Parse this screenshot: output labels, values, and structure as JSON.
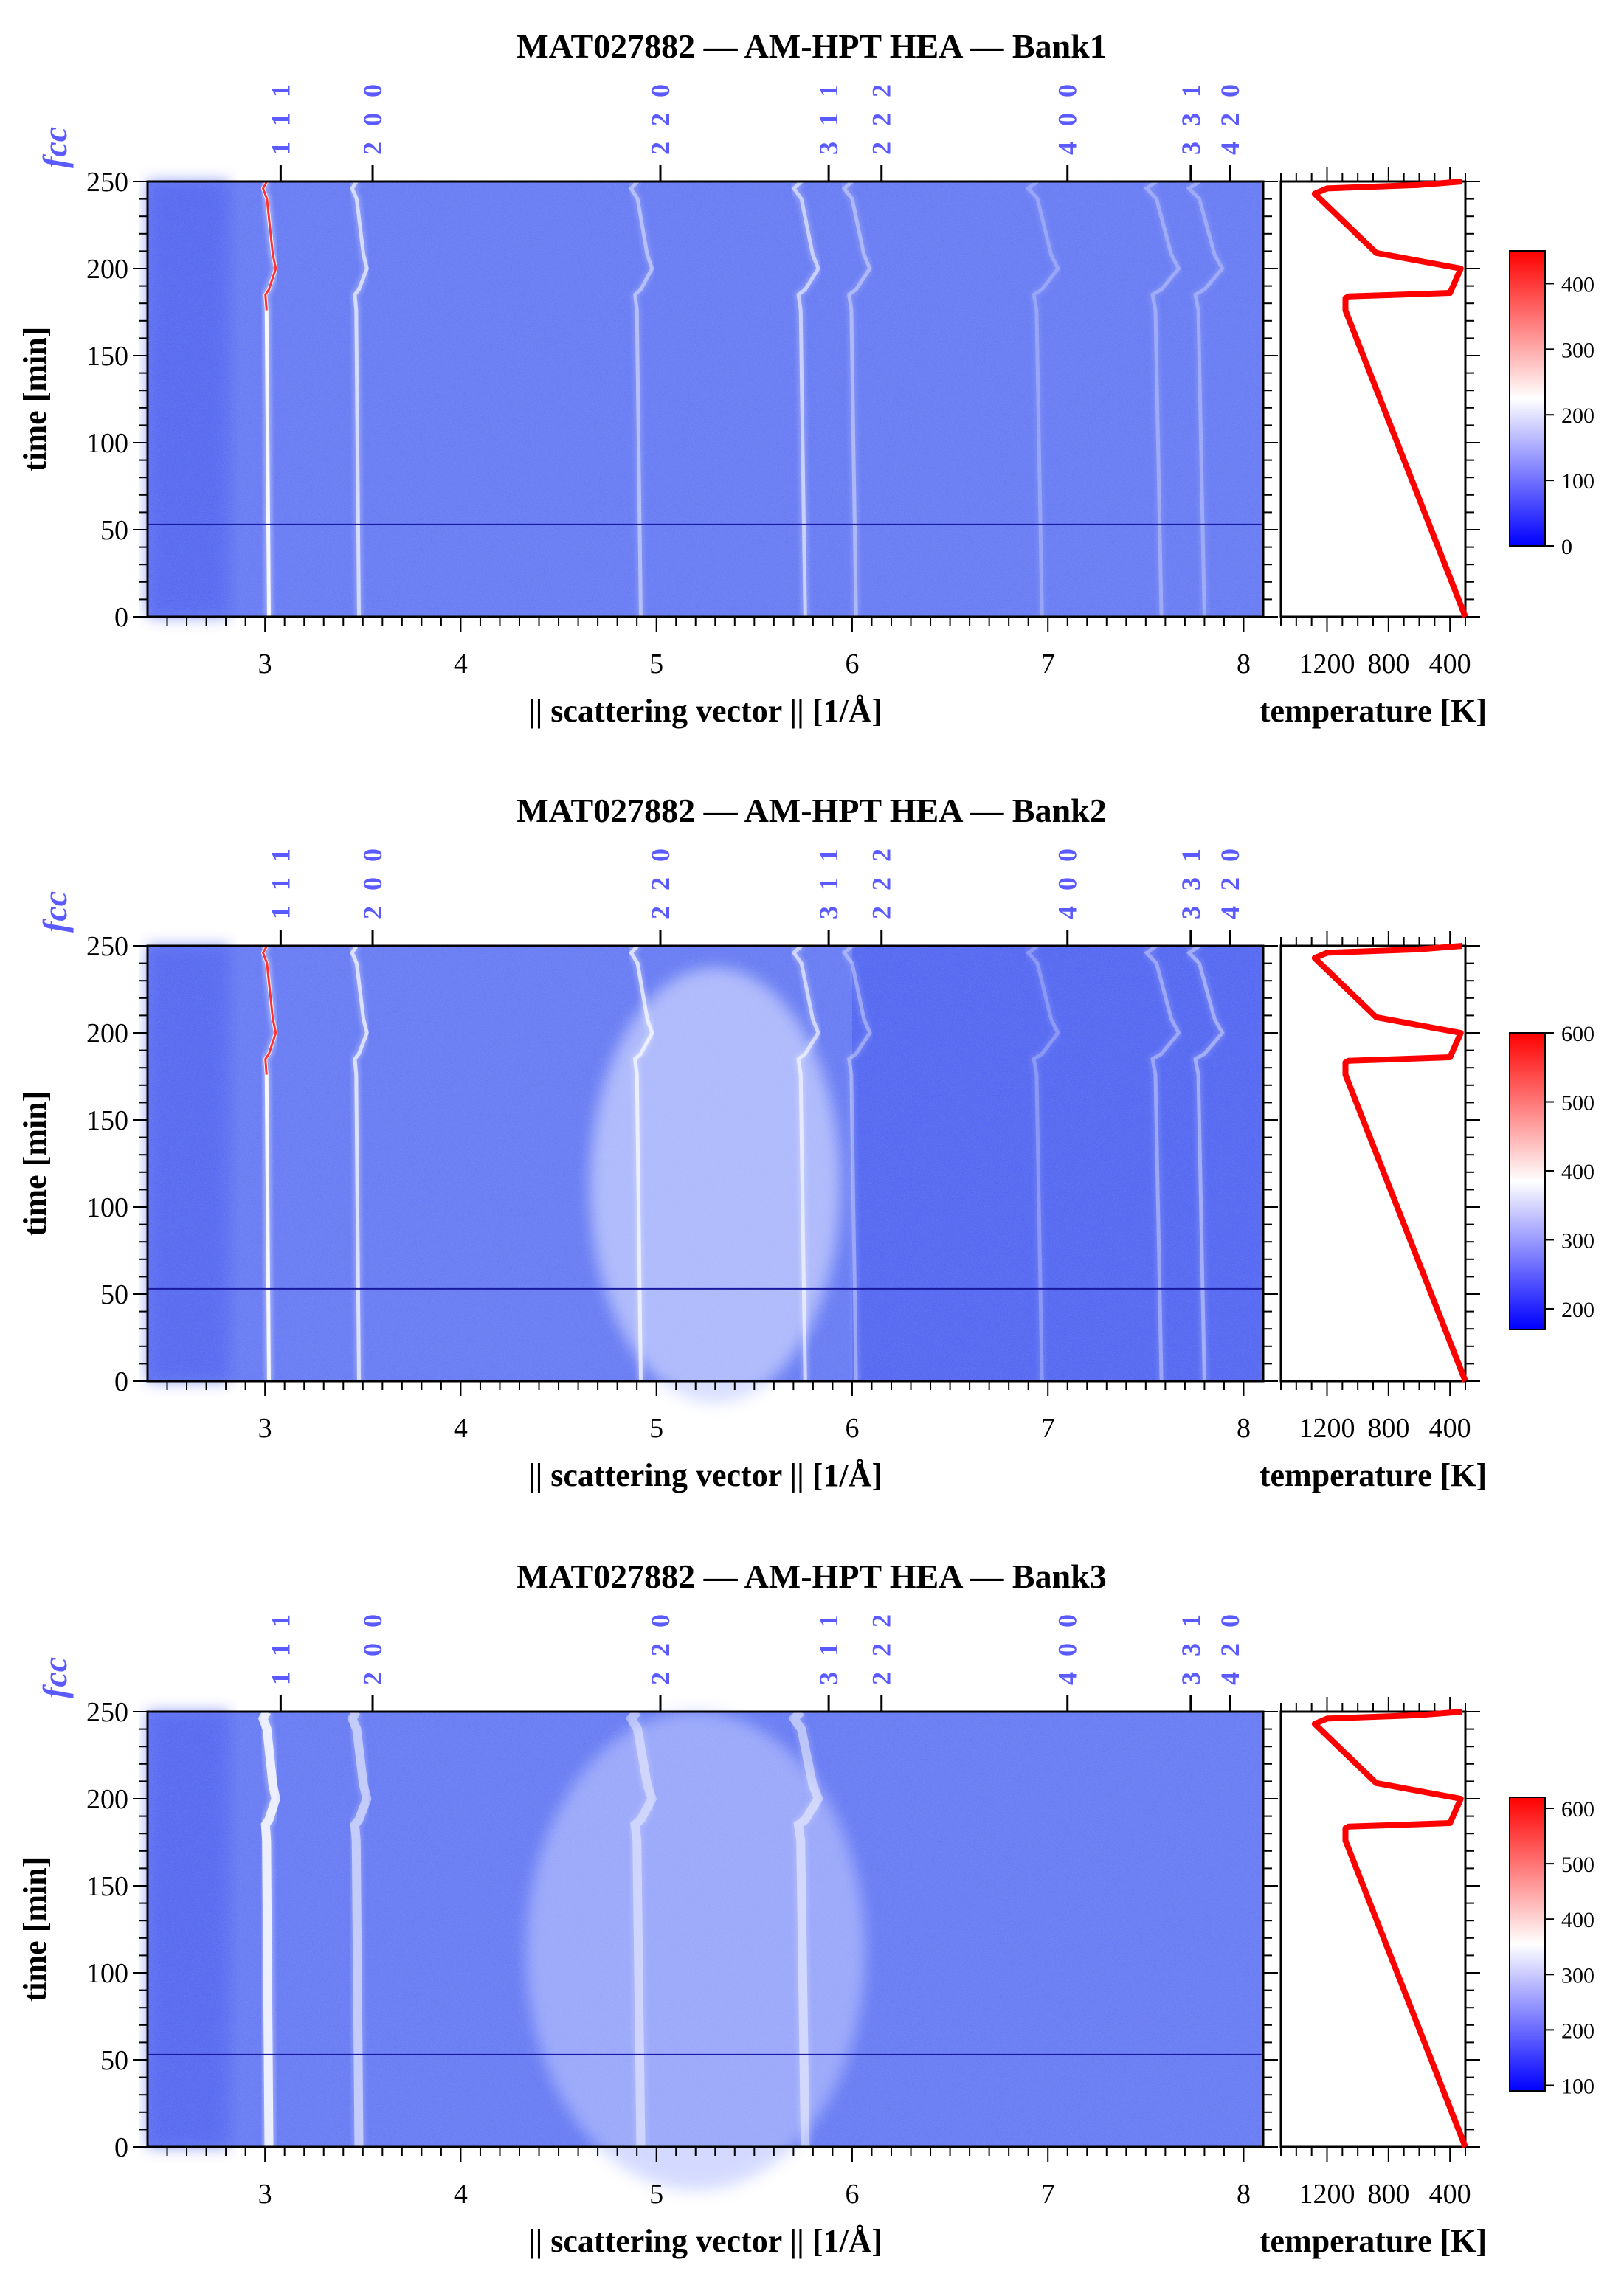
{
  "hkl_prefix": "fcc",
  "colors": {
    "peak_label": "#5a5aff",
    "temperature_line": "#ff0000",
    "cmap_low": "#0000ff",
    "cmap_mid": "#ffffff",
    "cmap_high": "#ff0000",
    "background": "#5a6ff0"
  },
  "chart_data": [
    {
      "type": "heatmap",
      "title": "MAT027882 — AM-HPT HEA — Bank1",
      "xlabel": "|| scattering vector || [1/Å]",
      "ylabel": "time [min]",
      "xlim": [
        2.4,
        8.1
      ],
      "ylim": [
        0,
        250
      ],
      "xticks": [
        "3",
        "4",
        "5",
        "6",
        "7",
        "8"
      ],
      "yticks": [
        "0",
        "50",
        "100",
        "150",
        "200",
        "250"
      ],
      "hkl_labels": [
        {
          "label": "1 1 1",
          "q": 3.08
        },
        {
          "label": "2 0 0",
          "q": 3.55
        },
        {
          "label": "2 2 0",
          "q": 5.02
        },
        {
          "label": "3 1 1",
          "q": 5.88
        },
        {
          "label": "2 2 2",
          "q": 6.15
        },
        {
          "label": "4 0 0",
          "q": 7.1
        },
        {
          "label": "3 3 1",
          "q": 7.73
        },
        {
          "label": "4 2 0",
          "q": 7.93
        }
      ],
      "peaks_q": [
        3.02,
        3.48,
        4.92,
        5.76,
        6.02,
        6.97,
        7.58,
        7.8
      ],
      "peak_strength": [
        1.0,
        0.7,
        0.45,
        0.6,
        0.4,
        0.25,
        0.3,
        0.3
      ],
      "horizontal_line_time": 53,
      "colorbar": {
        "min": 0,
        "max": 450,
        "ticks": [
          "0",
          "100",
          "200",
          "300",
          "400"
        ]
      },
      "temperature_panel": {
        "xlabel": "temperature [K]",
        "xticks": [
          "1200",
          "800",
          "400"
        ],
        "xlim": [
          1500,
          300
        ],
        "profile": [
          [
            300,
            0
          ],
          [
            1080,
            176
          ],
          [
            1080,
            183
          ],
          [
            1060,
            184
          ],
          [
            400,
            186
          ],
          [
            330,
            200
          ],
          [
            880,
            209
          ],
          [
            1280,
            243
          ],
          [
            1200,
            246
          ],
          [
            600,
            248
          ],
          [
            320,
            250
          ]
        ]
      }
    },
    {
      "type": "heatmap",
      "title": "MAT027882 — AM-HPT HEA — Bank2",
      "xlabel": "|| scattering vector || [1/Å]",
      "ylabel": "time [min]",
      "xlim": [
        2.4,
        8.1
      ],
      "ylim": [
        0,
        250
      ],
      "xticks": [
        "3",
        "4",
        "5",
        "6",
        "7",
        "8"
      ],
      "yticks": [
        "0",
        "50",
        "100",
        "150",
        "200",
        "250"
      ],
      "hkl_labels": [
        {
          "label": "1 1 1",
          "q": 3.08
        },
        {
          "label": "2 0 0",
          "q": 3.55
        },
        {
          "label": "2 2 0",
          "q": 5.02
        },
        {
          "label": "3 1 1",
          "q": 5.88
        },
        {
          "label": "2 2 2",
          "q": 6.15
        },
        {
          "label": "4 0 0",
          "q": 7.1
        },
        {
          "label": "3 3 1",
          "q": 7.73
        },
        {
          "label": "4 2 0",
          "q": 7.93
        }
      ],
      "peaks_q": [
        3.02,
        3.48,
        4.92,
        5.76,
        6.02,
        6.97,
        7.58,
        7.8
      ],
      "peak_strength": [
        1.0,
        0.75,
        0.75,
        0.65,
        0.35,
        0.25,
        0.35,
        0.4
      ],
      "horizontal_line_time": 53,
      "colorbar": {
        "min": 170,
        "max": 600,
        "ticks": [
          "200",
          "300",
          "400",
          "500",
          "600"
        ]
      },
      "temperature_panel": {
        "xlabel": "temperature [K]",
        "xticks": [
          "1200",
          "800",
          "400"
        ],
        "xlim": [
          1500,
          300
        ],
        "profile": [
          [
            300,
            0
          ],
          [
            1080,
            176
          ],
          [
            1080,
            183
          ],
          [
            1060,
            184
          ],
          [
            400,
            186
          ],
          [
            330,
            200
          ],
          [
            880,
            209
          ],
          [
            1280,
            243
          ],
          [
            1200,
            246
          ],
          [
            600,
            248
          ],
          [
            320,
            250
          ]
        ]
      }
    },
    {
      "type": "heatmap",
      "title": "MAT027882 — AM-HPT HEA — Bank3",
      "xlabel": "|| scattering vector || [1/Å]",
      "ylabel": "time [min]",
      "xlim": [
        2.4,
        8.1
      ],
      "ylim": [
        0,
        250
      ],
      "xticks": [
        "3",
        "4",
        "5",
        "6",
        "7",
        "8"
      ],
      "yticks": [
        "0",
        "50",
        "100",
        "150",
        "200",
        "250"
      ],
      "hkl_labels": [
        {
          "label": "1 1 1",
          "q": 3.08
        },
        {
          "label": "2 0 0",
          "q": 3.55
        },
        {
          "label": "2 2 0",
          "q": 5.02
        },
        {
          "label": "3 1 1",
          "q": 5.88
        },
        {
          "label": "2 2 2",
          "q": 6.15
        },
        {
          "label": "4 0 0",
          "q": 7.1
        },
        {
          "label": "3 3 1",
          "q": 7.73
        },
        {
          "label": "4 2 0",
          "q": 7.93
        }
      ],
      "peaks_q": [
        3.02,
        3.48,
        4.92,
        5.76
      ],
      "peak_strength": [
        0.9,
        0.55,
        0.45,
        0.5
      ],
      "horizontal_line_time": 53,
      "colorbar": {
        "min": 90,
        "max": 620,
        "ticks": [
          "100",
          "200",
          "300",
          "400",
          "500",
          "600"
        ]
      },
      "temperature_panel": {
        "xlabel": "temperature [K]",
        "xticks": [
          "1200",
          "800",
          "400"
        ],
        "xlim": [
          1500,
          300
        ],
        "profile": [
          [
            300,
            0
          ],
          [
            1080,
            176
          ],
          [
            1080,
            183
          ],
          [
            1060,
            184
          ],
          [
            400,
            186
          ],
          [
            330,
            200
          ],
          [
            880,
            209
          ],
          [
            1280,
            243
          ],
          [
            1200,
            246
          ],
          [
            600,
            248
          ],
          [
            320,
            250
          ]
        ]
      }
    }
  ]
}
